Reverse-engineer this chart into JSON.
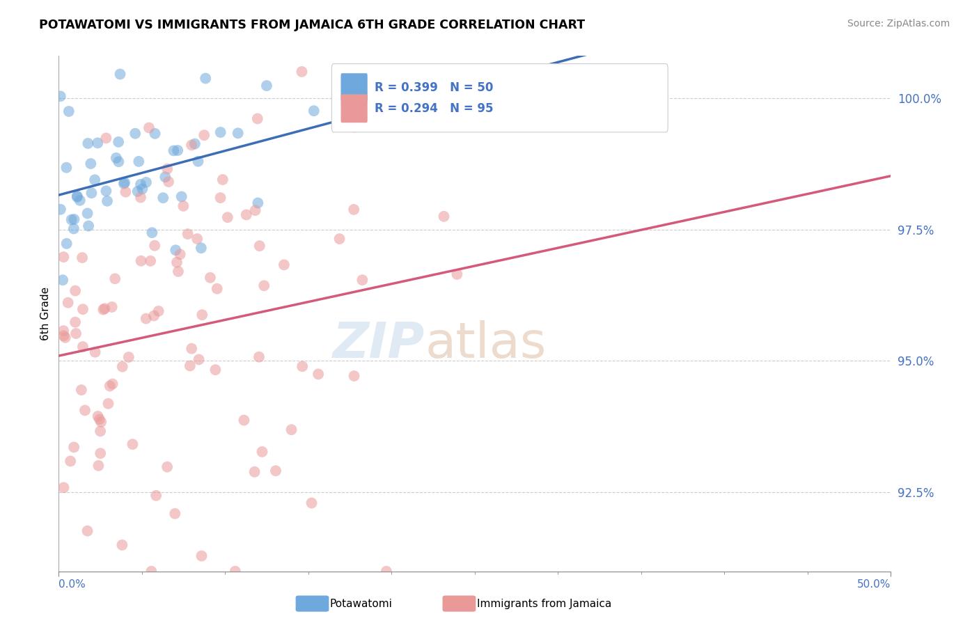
{
  "title": "POTAWATOMI VS IMMIGRANTS FROM JAMAICA 6TH GRADE CORRELATION CHART",
  "source": "Source: ZipAtlas.com",
  "ylabel": "6th Grade",
  "yticks": [
    92.5,
    95.0,
    97.5,
    100.0
  ],
  "ytick_labels": [
    "92.5%",
    "95.0%",
    "97.5%",
    "100.0%"
  ],
  "xmin": 0.0,
  "xmax": 50.0,
  "ymin": 91.0,
  "ymax": 100.8,
  "blue_R": 0.399,
  "blue_N": 50,
  "pink_R": 0.294,
  "pink_N": 95,
  "blue_color": "#6fa8dc",
  "pink_color": "#ea9999",
  "blue_line_color": "#3d6eb5",
  "pink_line_color": "#d5597b",
  "watermark_zip": "ZIP",
  "watermark_atlas": "atlas",
  "legend_label1": "Potawatomi",
  "legend_label2": "Immigrants from Jamaica"
}
